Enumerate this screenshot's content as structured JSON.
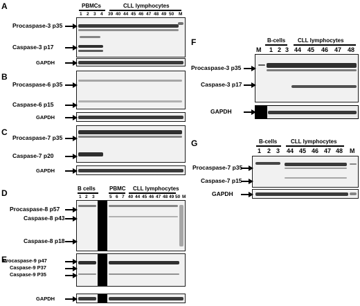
{
  "panels": {
    "A": {
      "letter": "A",
      "header_left": "PBMCs",
      "header_right": "CLL lymphocytes",
      "lanes": [
        "1",
        "2",
        "3",
        "4",
        "39",
        "40",
        "44",
        "45",
        "46",
        "47",
        "48",
        "49",
        "50",
        "M"
      ],
      "bands": {
        "procaspase": "Procaspase-3  p35",
        "caspase": "Caspase-3  p17",
        "loading": "GAPDH"
      }
    },
    "B": {
      "letter": "B",
      "bands": {
        "procaspase": "Procaspase-6  p35",
        "caspase": "Caspase-6  p15",
        "loading": "GAPDH"
      }
    },
    "C": {
      "letter": "C",
      "bands": {
        "procaspase": "Procaspase-7  p35",
        "caspase": "Caspase-7  p20",
        "loading": "GAPDH"
      }
    },
    "D": {
      "letter": "D",
      "header_bcells": "B cells",
      "header_pbmc": "PBMC",
      "header_cll": "CLL lymphocytes",
      "lanes_bcells": [
        "1",
        "2",
        "3"
      ],
      "lanes_rest": [
        "5",
        "6",
        "7",
        "40",
        "44",
        "45",
        "46",
        "47",
        "48",
        "49",
        "50",
        "M"
      ],
      "bands": {
        "p57": "Procaspase-8  p57",
        "p43": "Caspase-8  p43",
        "p18": "Caspase-8  p18"
      }
    },
    "E": {
      "letter": "E",
      "bands": {
        "p47": "Procaspase-9  p47",
        "p37": "Caspase-9  P37",
        "p35": "Caspase-9  P35",
        "loading": "GAPDH"
      }
    },
    "F": {
      "letter": "F",
      "header_bcells": "B-cells",
      "header_cll": "CLL lymphocytes",
      "lanes": [
        "M",
        "1",
        "2",
        "3",
        "44",
        "45",
        "46",
        "47",
        "48"
      ],
      "bands": {
        "procaspase": "Procaspase-3  p35",
        "caspase": "Caspase-3  p17",
        "loading": "GAPDH"
      }
    },
    "G": {
      "letter": "G",
      "header_bcells": "B-cells",
      "header_cll": "CLL lymphocytes",
      "lanes": [
        "1",
        "2",
        "3",
        "44",
        "45",
        "46",
        "47",
        "48",
        "M"
      ],
      "bands": {
        "procaspase": "Procaspase-7  p35",
        "caspase": "Caspase-7  p15",
        "loading": "GAPDH"
      }
    }
  }
}
